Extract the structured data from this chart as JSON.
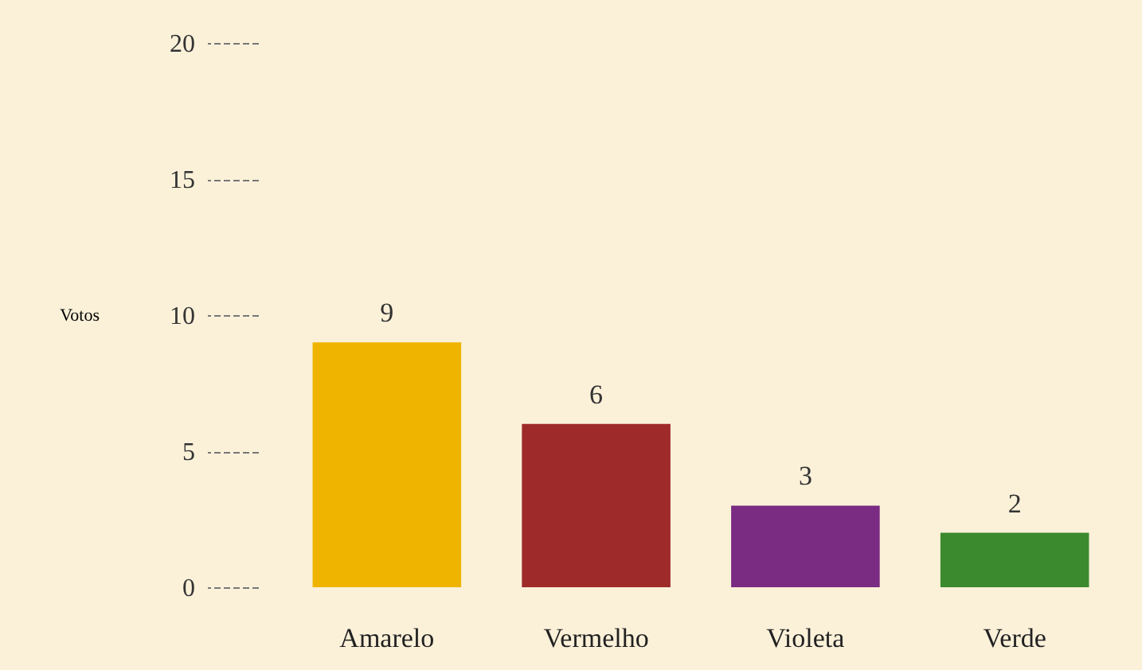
{
  "chart_data": {
    "type": "bar",
    "ylabel": "Votos",
    "categories": [
      "Amarelo",
      "Vermelho",
      "Violeta",
      "Verde"
    ],
    "values": [
      9,
      6,
      3,
      2
    ],
    "colors": [
      "#efb400",
      "#9e2a2a",
      "#7a2b82",
      "#3b8a2e"
    ],
    "ylim": [
      0,
      20
    ],
    "yticks": [
      0,
      5,
      10,
      15,
      20
    ],
    "grid": false,
    "data_labels": true
  }
}
